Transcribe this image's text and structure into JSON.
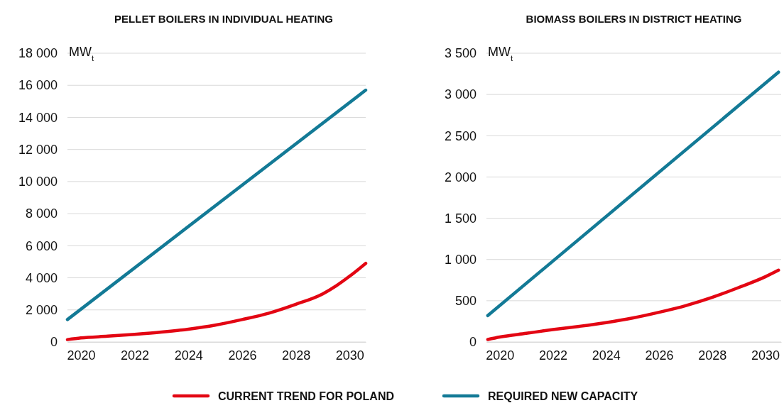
{
  "chart_data": [
    {
      "type": "line",
      "title": "PELLET BOILERS IN INDIVIDUAL HEATING",
      "annotations": [
        "MW$_{t}$"
      ],
      "xlim": [
        2019.5,
        2030.6
      ],
      "xticks": [
        2020,
        2022,
        2024,
        2026,
        2028,
        2030
      ],
      "ylim": [
        0,
        18000
      ],
      "yticks": [
        {
          "value": 0,
          "label": "0"
        },
        {
          "value": 2000,
          "label": "2 000"
        },
        {
          "value": 4000,
          "label": "4 000"
        },
        {
          "value": 6000,
          "label": "6 000"
        },
        {
          "value": 8000,
          "label": "8 000"
        },
        {
          "value": 10000,
          "label": "10 000"
        },
        {
          "value": 12000,
          "label": "12 000"
        },
        {
          "value": 14000,
          "label": "14 000"
        },
        {
          "value": 16000,
          "label": "16 000"
        },
        {
          "value": 18000,
          "label": "18 000"
        }
      ],
      "grid": "y",
      "legend": "bottom",
      "line_style": "solid",
      "marker": "none",
      "series": [
        {
          "name": "CURRENT TREND FOR POLAND",
          "color": "#e30613",
          "x": [
            2019.5,
            2020,
            2021,
            2022,
            2023,
            2024,
            2025,
            2026,
            2027,
            2028,
            2029,
            2029.5,
            2030,
            2030.6
          ],
          "values": [
            150,
            250,
            360,
            480,
            620,
            800,
            1050,
            1400,
            1800,
            2350,
            3000,
            3500,
            4100,
            4900
          ]
        },
        {
          "name": "REQUIRED NEW CAPACITY",
          "color": "#137a96",
          "x": [
            2019.5,
            2030.6
          ],
          "values": [
            1400,
            15700
          ]
        }
      ]
    },
    {
      "type": "line",
      "title": "BIOMASS BOILERS IN DISTRICT HEATING",
      "annotations": [
        "MW$_{t}$"
      ],
      "xlim": [
        2019.5,
        2030.6
      ],
      "xticks": [
        2020,
        2022,
        2024,
        2026,
        2028,
        2030
      ],
      "ylim": [
        0,
        3500
      ],
      "yticks": [
        {
          "value": 0,
          "label": "0"
        },
        {
          "value": 500,
          "label": "500"
        },
        {
          "value": 1000,
          "label": "1 000"
        },
        {
          "value": 1500,
          "label": "1 500"
        },
        {
          "value": 2000,
          "label": "2 000"
        },
        {
          "value": 2500,
          "label": "2 500"
        },
        {
          "value": 3000,
          "label": "3 000"
        },
        {
          "value": 3500,
          "label": "3 500"
        }
      ],
      "grid": "y",
      "line_style": "solid",
      "marker": "none",
      "series": [
        {
          "color": "#e30613",
          "x": [
            2019.55,
            2020,
            2021,
            2022,
            2023,
            2024,
            2025,
            2026,
            2027,
            2028,
            2029,
            2030,
            2030.5
          ],
          "values": [
            30,
            60,
            105,
            150,
            190,
            235,
            290,
            360,
            440,
            540,
            660,
            790,
            870
          ]
        },
        {
          "color": "#137a96",
          "x": [
            2019.55,
            2030.5
          ],
          "values": [
            320,
            3270
          ]
        }
      ]
    }
  ]
}
